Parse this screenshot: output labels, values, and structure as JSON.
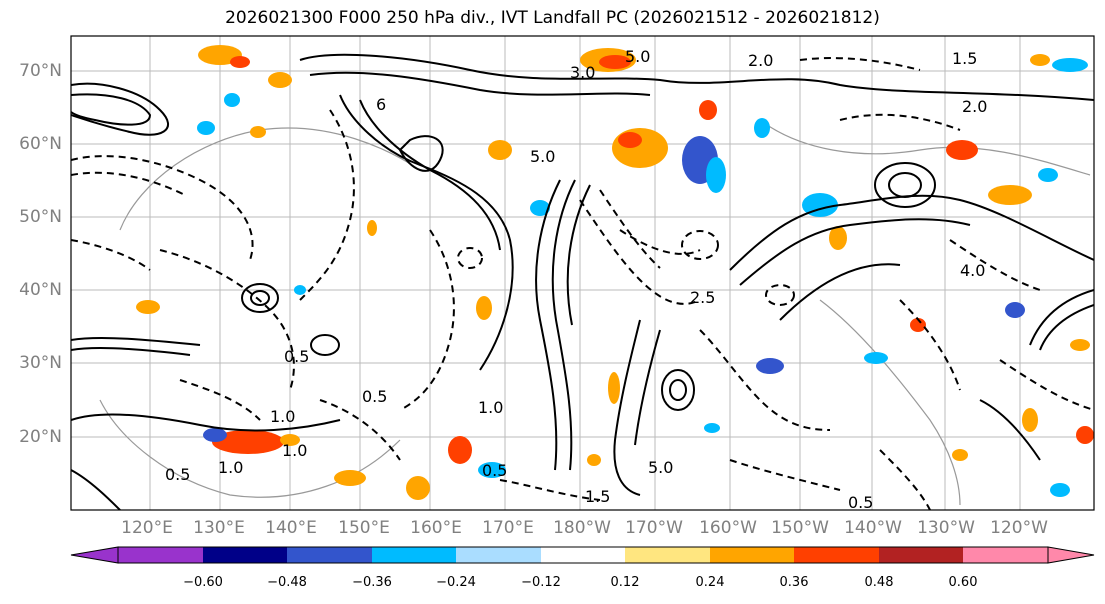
{
  "title": "2026021300 F000 250 hPa div., IVT Landfall PC (2026021512 - 2026021812)",
  "lat_labels": [
    "70°N",
    "60°N",
    "50°N",
    "40°N",
    "30°N",
    "20°N"
  ],
  "lon_labels": [
    "120°E",
    "130°E",
    "140°E",
    "150°E",
    "160°E",
    "170°E",
    "180°W",
    "170°W",
    "160°W",
    "150°W",
    "140°W",
    "130°W",
    "120°W"
  ],
  "colorbar": {
    "colors": [
      "#9933CC",
      "#000088",
      "#3355CC",
      "#00BBFF",
      "#AADDFF",
      "#FFFFFF",
      "#FFE680",
      "#FFA500",
      "#FF4000",
      "#B22222",
      "#FF88AA"
    ],
    "ticks": [
      "−0.60",
      "−0.48",
      "−0.36",
      "−0.24",
      "−0.12",
      "0.12",
      "0.24",
      "0.36",
      "0.48",
      "0.60"
    ]
  },
  "contour_labels": [
    "5.0",
    "3.0",
    "2.0",
    "1.5",
    "1.0",
    "0.5",
    "4.0",
    "6",
    "2.5"
  ]
}
